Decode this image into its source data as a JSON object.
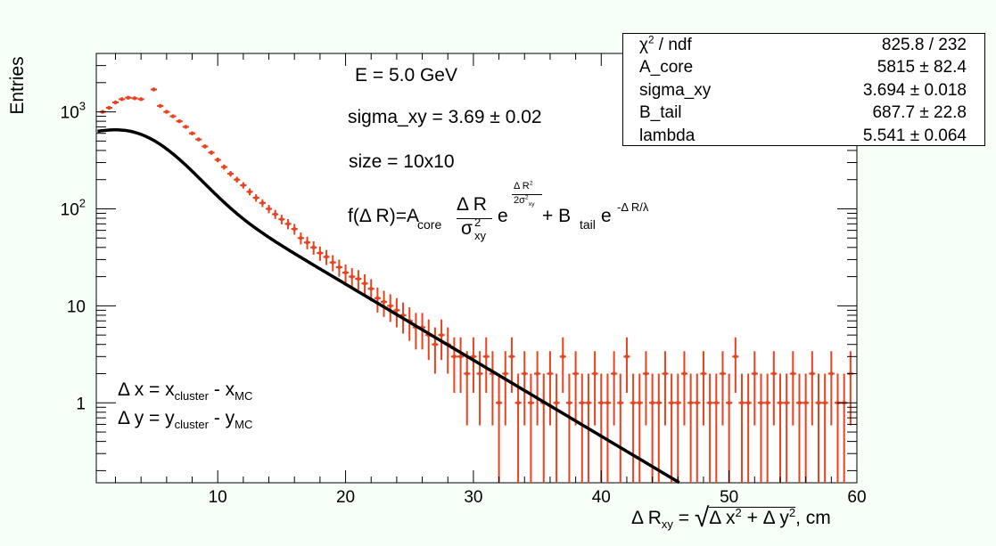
{
  "chart_data": {
    "type": "scatter",
    "title": "",
    "xlabel_parts": {
      "delta": "Δ",
      "r": " R",
      "sub": "xy",
      "eq": " = ",
      "expr": "Δ x",
      "sq1": "2",
      "plus": " + Δ y",
      "sq2": "2",
      "unit": ", cm"
    },
    "ylabel": "Entries",
    "xlim": [
      0.5,
      60
    ],
    "ylim": [
      0.15,
      4000
    ],
    "y_scale": "log",
    "x_ticks": [
      "10",
      "20",
      "30",
      "40",
      "50",
      "60"
    ],
    "y_ticks": [
      {
        "value": 1000,
        "base": "10",
        "exp": "3"
      },
      {
        "value": 100,
        "base": "10",
        "exp": "2"
      },
      {
        "value": 10,
        "label": "10"
      },
      {
        "value": 1,
        "label": "1"
      }
    ],
    "series": [
      {
        "kind": "histogram-errorbars",
        "color": "#e8431e",
        "points": [
          [
            1.0,
            1000
          ],
          [
            1.5,
            1100
          ],
          [
            2.0,
            1250
          ],
          [
            2.5,
            1350
          ],
          [
            3.0,
            1400
          ],
          [
            3.5,
            1380
          ],
          [
            4.0,
            1350
          ],
          [
            5.0,
            1700
          ],
          [
            5.5,
            1150
          ],
          [
            6.0,
            1000
          ],
          [
            6.5,
            900
          ],
          [
            7.0,
            800
          ],
          [
            7.5,
            700
          ],
          [
            8.0,
            600
          ],
          [
            8.5,
            520
          ],
          [
            9.0,
            440
          ],
          [
            9.5,
            380
          ],
          [
            10.0,
            320
          ],
          [
            10.5,
            270
          ],
          [
            11.0,
            230
          ],
          [
            11.5,
            200
          ],
          [
            12.0,
            175
          ],
          [
            12.5,
            150
          ],
          [
            13.0,
            130
          ],
          [
            13.5,
            115
          ],
          [
            14.0,
            100
          ],
          [
            14.5,
            88
          ],
          [
            15.0,
            78
          ],
          [
            15.5,
            70
          ],
          [
            16.0,
            62
          ],
          [
            16.5,
            50
          ],
          [
            17.0,
            45
          ],
          [
            17.5,
            40
          ],
          [
            18.0,
            35
          ],
          [
            18.5,
            32
          ],
          [
            19.0,
            28
          ],
          [
            19.5,
            25
          ],
          [
            20.0,
            22
          ],
          [
            20.5,
            20
          ],
          [
            21.0,
            19
          ],
          [
            21.5,
            17
          ],
          [
            22.0,
            15
          ],
          [
            22.5,
            12
          ],
          [
            23.0,
            11
          ],
          [
            23.5,
            10
          ],
          [
            24.0,
            9
          ],
          [
            24.5,
            8
          ],
          [
            25.0,
            7
          ],
          [
            25.5,
            6
          ],
          [
            26.0,
            6
          ],
          [
            26.5,
            5
          ],
          [
            27.0,
            4
          ],
          [
            27.5,
            5
          ],
          [
            28.0,
            4
          ],
          [
            28.5,
            3
          ],
          [
            29.0,
            3
          ],
          [
            29.5,
            2
          ],
          [
            30.0,
            3
          ],
          [
            30.5,
            2
          ],
          [
            31.0,
            3
          ],
          [
            31.5,
            2
          ],
          [
            32.0,
            1
          ],
          [
            32.5,
            2
          ],
          [
            33.0,
            3
          ],
          [
            33.5,
            1
          ],
          [
            34.0,
            2
          ],
          [
            34.5,
            1
          ],
          [
            35.0,
            2
          ],
          [
            35.5,
            1
          ],
          [
            36.0,
            2
          ],
          [
            36.5,
            1
          ],
          [
            37.0,
            3
          ],
          [
            37.5,
            1
          ],
          [
            38.0,
            2
          ],
          [
            38.5,
            1
          ],
          [
            39.0,
            1
          ],
          [
            39.5,
            2
          ],
          [
            40.0,
            1
          ],
          [
            40.5,
            1
          ],
          [
            41.0,
            2
          ],
          [
            41.5,
            1
          ],
          [
            42.0,
            3
          ],
          [
            42.5,
            1
          ],
          [
            43.0,
            1
          ],
          [
            43.5,
            2
          ],
          [
            44.0,
            1
          ],
          [
            44.5,
            1
          ],
          [
            45.0,
            2
          ],
          [
            45.5,
            1
          ],
          [
            46.0,
            1
          ],
          [
            46.5,
            2
          ],
          [
            47.0,
            1
          ],
          [
            47.5,
            1
          ],
          [
            48.0,
            2
          ],
          [
            48.5,
            1
          ],
          [
            49.0,
            1
          ],
          [
            49.5,
            2
          ],
          [
            50.0,
            1
          ],
          [
            50.5,
            3
          ],
          [
            51.0,
            1
          ],
          [
            51.5,
            1
          ],
          [
            52.0,
            2
          ],
          [
            52.5,
            1
          ],
          [
            53.0,
            1
          ],
          [
            53.5,
            2
          ],
          [
            54.0,
            1
          ],
          [
            54.5,
            1
          ],
          [
            55.0,
            2
          ],
          [
            55.5,
            1
          ],
          [
            56.0,
            1
          ],
          [
            56.5,
            2
          ],
          [
            57.0,
            1
          ],
          [
            57.5,
            1
          ],
          [
            58.0,
            2
          ],
          [
            58.5,
            1
          ],
          [
            59.0,
            1
          ],
          [
            59.5,
            2
          ]
        ]
      },
      {
        "kind": "fit",
        "color": "#000000",
        "function": "f(ΔR) = A_core·ΔR/σ_xy²·exp(-ΔR²/(2σ_xy²)) + B_tail·exp(-ΔR/λ)",
        "params": {
          "A_core": 5815,
          "sigma_xy": 3.694,
          "B_tail": 687.7,
          "lambda": 5.541
        }
      }
    ]
  },
  "annotations": {
    "energy": "E = 5.0 GeV",
    "sigma": "sigma_xy = 3.69 ± 0.02",
    "size": "size = 10x10",
    "formula": {
      "lhs": "f(Δ R)=A",
      "core": "core",
      "num": "Δ R",
      "den": "σ",
      "den_sup": "2",
      "den_sub": "xy",
      "e1": "e",
      "exp_num": "Δ R",
      "exp_num_sup": "2",
      "exp_den": "2σ",
      "exp_den_sup": "2",
      "exp_den_sub": "xy",
      "plus": " + B",
      "tail": "tail",
      "e2": " e",
      "exp2": "-Δ R/λ"
    },
    "dx": {
      "lhs": "Δ x = x",
      "sub1": "cluster",
      "mid": " - x",
      "sub2": "MC"
    },
    "dy": {
      "lhs": "Δ y = y",
      "sub1": "cluster",
      "mid": " - y",
      "sub2": "MC"
    }
  },
  "stats": [
    {
      "name_base": "χ",
      "name_sup": "2",
      "name_rest": " / ndf",
      "value": "825.8 / 232"
    },
    {
      "name": "A_core",
      "value": "5815 ± 82.4"
    },
    {
      "name": "sigma_xy",
      "value": "3.694 ± 0.018"
    },
    {
      "name": "B_tail",
      "value": "687.7 ± 22.8"
    },
    {
      "name": "lambda",
      "value": "5.541 ± 0.064"
    }
  ]
}
